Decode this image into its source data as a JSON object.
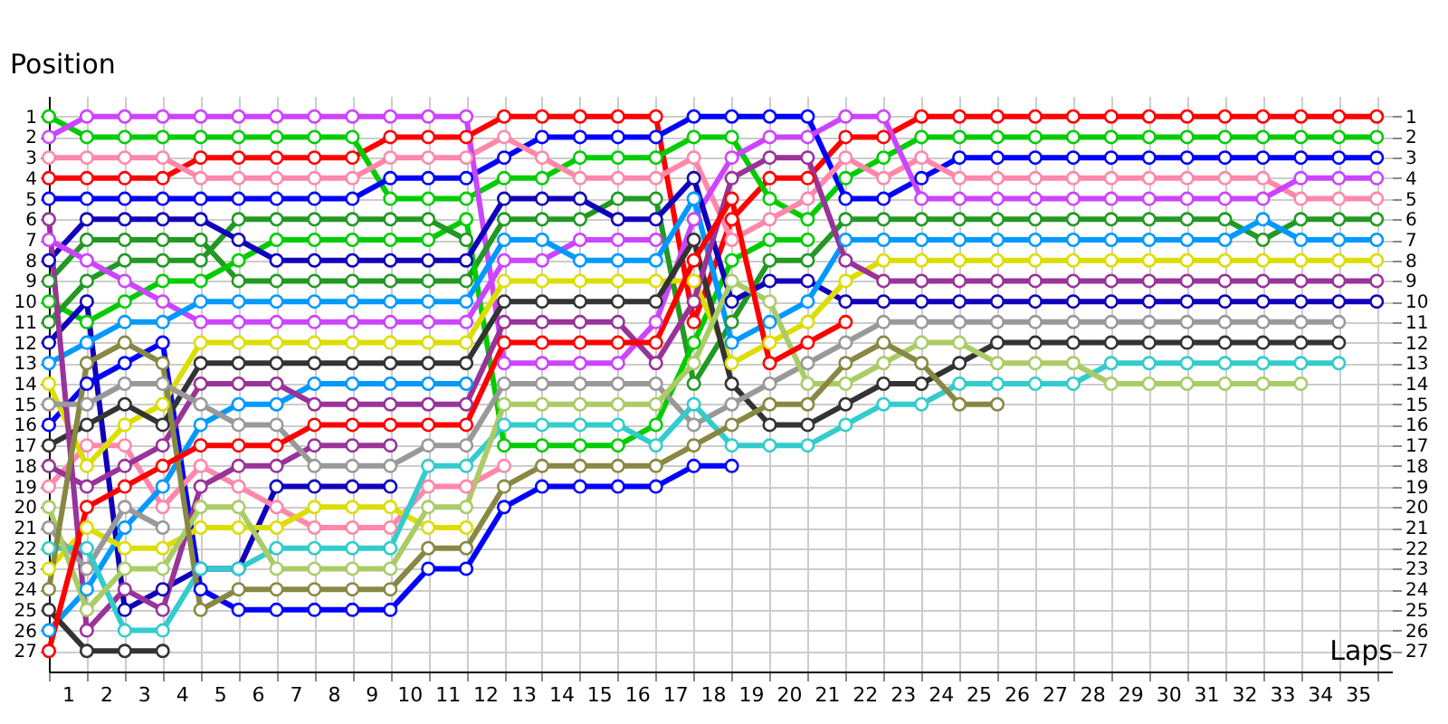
{
  "chart_data": {
    "type": "line",
    "ylabel": "Position",
    "xlabel": "Laps",
    "x": [
      0,
      1,
      2,
      3,
      4,
      5,
      6,
      7,
      8,
      9,
      10,
      11,
      12,
      13,
      14,
      15,
      16,
      17,
      18,
      19,
      20,
      21,
      22,
      23,
      24,
      25,
      26,
      27,
      28,
      29,
      30,
      31,
      32,
      33,
      34,
      35
    ],
    "xlim": [
      0,
      35.4
    ],
    "xticks": [
      {
        "value": 0,
        "label": null
      },
      {
        "value": 0.5,
        "label": "1"
      },
      {
        "value": 1,
        "label": null
      },
      {
        "value": 1.5,
        "label": "2"
      },
      {
        "value": 2,
        "label": null
      },
      {
        "value": 2.5,
        "label": "3"
      },
      {
        "value": 3,
        "label": null
      },
      {
        "value": 3.5,
        "label": "4"
      },
      {
        "value": 4,
        "label": null
      },
      {
        "value": 4.5,
        "label": "5"
      },
      {
        "value": 5,
        "label": null
      },
      {
        "value": 5.5,
        "label": "6"
      },
      {
        "value": 6,
        "label": null
      },
      {
        "value": 6.5,
        "label": "7"
      },
      {
        "value": 7,
        "label": null
      },
      {
        "value": 7.5,
        "label": "8"
      },
      {
        "value": 8,
        "label": null
      },
      {
        "value": 8.5,
        "label": "9"
      },
      {
        "value": 9,
        "label": null
      },
      {
        "value": 9.5,
        "label": "10"
      },
      {
        "value": 10,
        "label": null
      },
      {
        "value": 10.5,
        "label": "11"
      },
      {
        "value": 11,
        "label": null
      },
      {
        "value": 11.5,
        "label": "12"
      },
      {
        "value": 12,
        "label": null
      },
      {
        "value": 12.5,
        "label": "13"
      },
      {
        "value": 13,
        "label": null
      },
      {
        "value": 13.5,
        "label": "14"
      },
      {
        "value": 14,
        "label": null
      },
      {
        "value": 14.5,
        "label": "15"
      },
      {
        "value": 15,
        "label": null
      },
      {
        "value": 15.5,
        "label": "16"
      },
      {
        "value": 16,
        "label": null
      },
      {
        "value": 16.5,
        "label": "17"
      },
      {
        "value": 17,
        "label": null
      },
      {
        "value": 17.5,
        "label": "18"
      },
      {
        "value": 18,
        "label": null
      },
      {
        "value": 18.5,
        "label": "19"
      },
      {
        "value": 19,
        "label": null
      },
      {
        "value": 19.5,
        "label": "20"
      },
      {
        "value": 20,
        "label": null
      },
      {
        "value": 20.5,
        "label": "21"
      },
      {
        "value": 21,
        "label": null
      },
      {
        "value": 21.5,
        "label": "22"
      },
      {
        "value": 22,
        "label": null
      },
      {
        "value": 22.5,
        "label": "23"
      },
      {
        "value": 23,
        "label": null
      },
      {
        "value": 23.5,
        "label": "24"
      },
      {
        "value": 24,
        "label": null
      },
      {
        "value": 24.5,
        "label": "25"
      },
      {
        "value": 25,
        "label": null
      },
      {
        "value": 25.5,
        "label": "26"
      },
      {
        "value": 26,
        "label": null
      },
      {
        "value": 26.5,
        "label": "27"
      },
      {
        "value": 27,
        "label": null
      },
      {
        "value": 27.5,
        "label": "28"
      },
      {
        "value": 28,
        "label": null
      },
      {
        "value": 28.5,
        "label": "29"
      },
      {
        "value": 29,
        "label": null
      },
      {
        "value": 29.5,
        "label": "30"
      },
      {
        "value": 30,
        "label": null
      },
      {
        "value": 30.5,
        "label": "31"
      },
      {
        "value": 31,
        "label": null
      },
      {
        "value": 31.5,
        "label": "32"
      },
      {
        "value": 32,
        "label": null
      },
      {
        "value": 32.5,
        "label": "33"
      },
      {
        "value": 33,
        "label": null
      },
      {
        "value": 33.5,
        "label": "34"
      },
      {
        "value": 34,
        "label": null
      },
      {
        "value": 34.5,
        "label": "35"
      },
      {
        "value": 35,
        "label": null
      }
    ],
    "ylim": [
      28,
      0
    ],
    "yticks": [
      1,
      2,
      3,
      4,
      5,
      6,
      7,
      8,
      9,
      10,
      11,
      12,
      13,
      14,
      15,
      16,
      17,
      18,
      19,
      20,
      21,
      22,
      23,
      24,
      25,
      26,
      27
    ],
    "y2lim": [
      28,
      0
    ],
    "y2ticks": [
      1,
      2,
      3,
      4,
      5,
      6,
      7,
      8,
      9,
      10,
      11,
      12,
      13,
      14,
      15,
      16,
      17,
      18,
      19,
      20,
      21,
      22,
      23,
      24,
      25,
      26,
      27
    ],
    "grid": true,
    "legend": false,
    "marker": "circle",
    "line_style": "solid",
    "series": [
      {
        "color": "#ff0000",
        "values": [
          4,
          4,
          4,
          4,
          3,
          3,
          3,
          3,
          3,
          2,
          2,
          2,
          1,
          1,
          1,
          1,
          1,
          11,
          6,
          4,
          4,
          2,
          2,
          1,
          1,
          1,
          1,
          1,
          1,
          1,
          1,
          1,
          1,
          1,
          1,
          1
        ]
      },
      {
        "color": "#00cc00",
        "values": [
          1,
          2,
          2,
          2,
          2,
          2,
          2,
          2,
          2,
          5,
          5,
          5,
          4,
          4,
          3,
          3,
          3,
          2,
          2,
          5,
          6,
          4,
          3,
          2,
          2,
          2,
          2,
          2,
          2,
          2,
          2,
          2,
          2,
          2,
          2,
          2
        ]
      },
      {
        "color": "#0000ff",
        "values": [
          5,
          5,
          5,
          5,
          5,
          5,
          5,
          5,
          5,
          4,
          4,
          4,
          3,
          2,
          2,
          2,
          2,
          1,
          1,
          1,
          1,
          5,
          5,
          4,
          3,
          3,
          3,
          3,
          3,
          3,
          3,
          3,
          3,
          3,
          3,
          3
        ]
      },
      {
        "color": "#ff88aa",
        "values": [
          3,
          3,
          3,
          3,
          4,
          4,
          4,
          4,
          4,
          3,
          3,
          3,
          2,
          3,
          4,
          4,
          4,
          3,
          7,
          6,
          5,
          3,
          4,
          3,
          4,
          4,
          4,
          4,
          4,
          4,
          4,
          4,
          4,
          5,
          5,
          5
        ]
      },
      {
        "color": "#cc44ff",
        "values": [
          2,
          1,
          1,
          1,
          1,
          1,
          1,
          1,
          1,
          1,
          1,
          1,
          13,
          13,
          13,
          13,
          11,
          6,
          3,
          2,
          2,
          1,
          1,
          5,
          5,
          5,
          5,
          5,
          5,
          5,
          5,
          5,
          5,
          4,
          4,
          4
        ]
      },
      {
        "color": "#229922",
        "values": [
          9,
          7,
          7,
          7,
          7,
          9,
          9,
          9,
          9,
          9,
          9,
          9,
          6,
          6,
          6,
          5,
          5,
          14,
          11,
          8,
          8,
          6,
          6,
          6,
          6,
          6,
          6,
          6,
          6,
          6,
          6,
          6,
          7,
          6,
          6,
          6
        ]
      },
      {
        "color": "#00cc00",
        "values": [
          10,
          11,
          10,
          9,
          9,
          8,
          7,
          7,
          7,
          7,
          7,
          6,
          17,
          17,
          17,
          17,
          16,
          12,
          8,
          7,
          7,
          null,
          null,
          null,
          null,
          null,
          null,
          null,
          null,
          null,
          null,
          null,
          null,
          null,
          null,
          null
        ]
      },
      {
        "color": "#229922",
        "values": [
          11,
          9,
          8,
          8,
          8,
          6,
          6,
          6,
          6,
          6,
          6,
          7,
          null,
          null,
          null,
          null,
          null,
          null,
          null,
          null,
          null,
          null,
          null,
          null,
          null,
          null,
          null,
          null,
          null,
          null,
          null,
          null,
          null,
          null,
          null,
          null
        ]
      },
      {
        "color": "#1100bb",
        "values": [
          8,
          6,
          6,
          6,
          6,
          7,
          8,
          8,
          8,
          8,
          8,
          8,
          5,
          5,
          5,
          6,
          6,
          4,
          10,
          9,
          9,
          10,
          10,
          10,
          10,
          10,
          10,
          10,
          10,
          10,
          10,
          10,
          10,
          10,
          10,
          10
        ]
      },
      {
        "color": "#1100bb",
        "values": [
          12,
          10,
          25,
          24,
          23,
          23,
          19,
          19,
          19,
          19,
          null,
          null,
          null,
          null,
          null,
          null,
          null,
          null,
          null,
          null,
          null,
          null,
          null,
          null,
          null,
          null,
          null,
          null,
          null,
          null,
          null,
          null,
          null,
          null,
          null,
          null
        ]
      },
      {
        "color": "#0000ff",
        "values": [
          16,
          14,
          13,
          12,
          24,
          25,
          25,
          25,
          25,
          25,
          23,
          23,
          20,
          19,
          19,
          19,
          19,
          18,
          18,
          null,
          null,
          null,
          null,
          null,
          null,
          null,
          null,
          null,
          null,
          null,
          null,
          null,
          null,
          null,
          null,
          null
        ]
      },
      {
        "color": "#ff88aa",
        "values": [
          19,
          17,
          17,
          20,
          18,
          19,
          20,
          21,
          21,
          21,
          19,
          19,
          18,
          null,
          null,
          null,
          null,
          null,
          null,
          null,
          null,
          null,
          null,
          null,
          null,
          null,
          null,
          null,
          null,
          null,
          null,
          null,
          null,
          null,
          null,
          null
        ]
      },
      {
        "color": "#cc44ff",
        "values": [
          7,
          8,
          9,
          10,
          11,
          11,
          11,
          11,
          11,
          11,
          11,
          11,
          8,
          8,
          7,
          7,
          7,
          null,
          null,
          null,
          null,
          null,
          null,
          null,
          null,
          null,
          null,
          null,
          null,
          null,
          null,
          null,
          null,
          null,
          null,
          null
        ]
      },
      {
        "color": "#0099ff",
        "values": [
          13,
          12,
          11,
          11,
          10,
          10,
          10,
          10,
          10,
          10,
          10,
          10,
          7,
          7,
          8,
          8,
          8,
          5,
          12,
          11,
          10,
          7,
          7,
          7,
          7,
          7,
          7,
          7,
          7,
          7,
          7,
          7,
          6,
          7,
          7,
          7
        ]
      },
      {
        "color": "#0099ff",
        "values": [
          26,
          24,
          21,
          19,
          16,
          15,
          15,
          14,
          14,
          14,
          14,
          14,
          null,
          null,
          null,
          null,
          null,
          null,
          null,
          null,
          null,
          null,
          null,
          null,
          null,
          null,
          null,
          null,
          null,
          null,
          null,
          null,
          null,
          null,
          null,
          null
        ]
      },
      {
        "color": "#dddd00",
        "values": [
          14,
          18,
          16,
          15,
          12,
          12,
          12,
          12,
          12,
          12,
          12,
          12,
          9,
          9,
          9,
          9,
          9,
          9,
          13,
          12,
          11,
          9,
          8,
          8,
          8,
          8,
          8,
          8,
          8,
          8,
          8,
          8,
          8,
          8,
          8,
          8
        ]
      },
      {
        "color": "#dddd00",
        "values": [
          23,
          21,
          22,
          22,
          21,
          21,
          21,
          20,
          20,
          20,
          21,
          21,
          null,
          null,
          null,
          null,
          null,
          null,
          null,
          null,
          null,
          null,
          null,
          null,
          null,
          null,
          null,
          null,
          null,
          null,
          null,
          null,
          null,
          null,
          null,
          null
        ]
      },
      {
        "color": "#333333",
        "values": [
          17,
          16,
          15,
          16,
          13,
          13,
          13,
          13,
          13,
          13,
          13,
          13,
          10,
          10,
          10,
          10,
          10,
          7,
          14,
          16,
          16,
          15,
          14,
          14,
          13,
          12,
          12,
          12,
          12,
          12,
          12,
          12,
          12,
          12,
          12,
          null
        ]
      },
      {
        "color": "#333333",
        "values": [
          25,
          27,
          27,
          27,
          null,
          null,
          null,
          null,
          null,
          null,
          null,
          null,
          null,
          null,
          null,
          null,
          null,
          null,
          null,
          null,
          null,
          null,
          null,
          null,
          null,
          null,
          null,
          null,
          null,
          null,
          null,
          null,
          null,
          null,
          null,
          null
        ]
      },
      {
        "color": "#993399",
        "values": [
          18,
          19,
          18,
          17,
          14,
          14,
          14,
          15,
          15,
          15,
          15,
          15,
          11,
          11,
          11,
          11,
          13,
          10,
          4,
          3,
          3,
          8,
          9,
          9,
          9,
          9,
          9,
          9,
          9,
          9,
          9,
          9,
          9,
          9,
          9,
          9
        ]
      },
      {
        "color": "#993399",
        "values": [
          6,
          26,
          24,
          25,
          19,
          18,
          18,
          17,
          17,
          17,
          null,
          null,
          null,
          null,
          null,
          null,
          null,
          null,
          null,
          null,
          null,
          null,
          null,
          null,
          null,
          null,
          null,
          null,
          null,
          null,
          null,
          null,
          null,
          null,
          null,
          null
        ]
      },
      {
        "color": "#999999",
        "values": [
          15,
          15,
          14,
          14,
          15,
          16,
          16,
          18,
          18,
          18,
          17,
          17,
          14,
          14,
          14,
          14,
          14,
          16,
          15,
          14,
          13,
          12,
          11,
          11,
          11,
          11,
          11,
          11,
          11,
          11,
          11,
          11,
          11,
          11,
          11,
          null
        ]
      },
      {
        "color": "#999999",
        "values": [
          21,
          23,
          20,
          21,
          null,
          null,
          null,
          null,
          null,
          null,
          null,
          null,
          null,
          null,
          null,
          null,
          null,
          null,
          null,
          null,
          null,
          null,
          null,
          null,
          null,
          null,
          null,
          null,
          null,
          null,
          null,
          null,
          null,
          null,
          null,
          null
        ]
      },
      {
        "color": "#33cccc",
        "values": [
          22,
          22,
          26,
          26,
          23,
          23,
          22,
          22,
          22,
          22,
          18,
          18,
          16,
          16,
          16,
          16,
          17,
          15,
          17,
          17,
          17,
          16,
          15,
          15,
          14,
          14,
          14,
          14,
          13,
          13,
          13,
          13,
          13,
          13,
          13,
          null
        ]
      },
      {
        "color": "#aacc66",
        "values": [
          20,
          25,
          23,
          23,
          20,
          20,
          23,
          23,
          23,
          23,
          20,
          20,
          15,
          15,
          15,
          15,
          15,
          13,
          9,
          10,
          14,
          14,
          13,
          12,
          12,
          13,
          13,
          13,
          14,
          14,
          14,
          14,
          14,
          14,
          null,
          null
        ]
      },
      {
        "color": "#888844",
        "values": [
          24,
          13,
          12,
          13,
          25,
          24,
          24,
          24,
          24,
          24,
          22,
          22,
          19,
          18,
          18,
          18,
          18,
          17,
          16,
          15,
          15,
          13,
          12,
          13,
          15,
          15,
          null,
          null,
          null,
          null,
          null,
          null,
          null,
          null,
          null,
          null
        ]
      },
      {
        "color": "#ff0000",
        "values": [
          27,
          20,
          19,
          18,
          17,
          17,
          17,
          16,
          16,
          16,
          16,
          16,
          12,
          12,
          12,
          12,
          12,
          8,
          5,
          13,
          12,
          11,
          null,
          null,
          null,
          null,
          null,
          null,
          null,
          null,
          null,
          null,
          null,
          null,
          null,
          null
        ]
      }
    ]
  }
}
